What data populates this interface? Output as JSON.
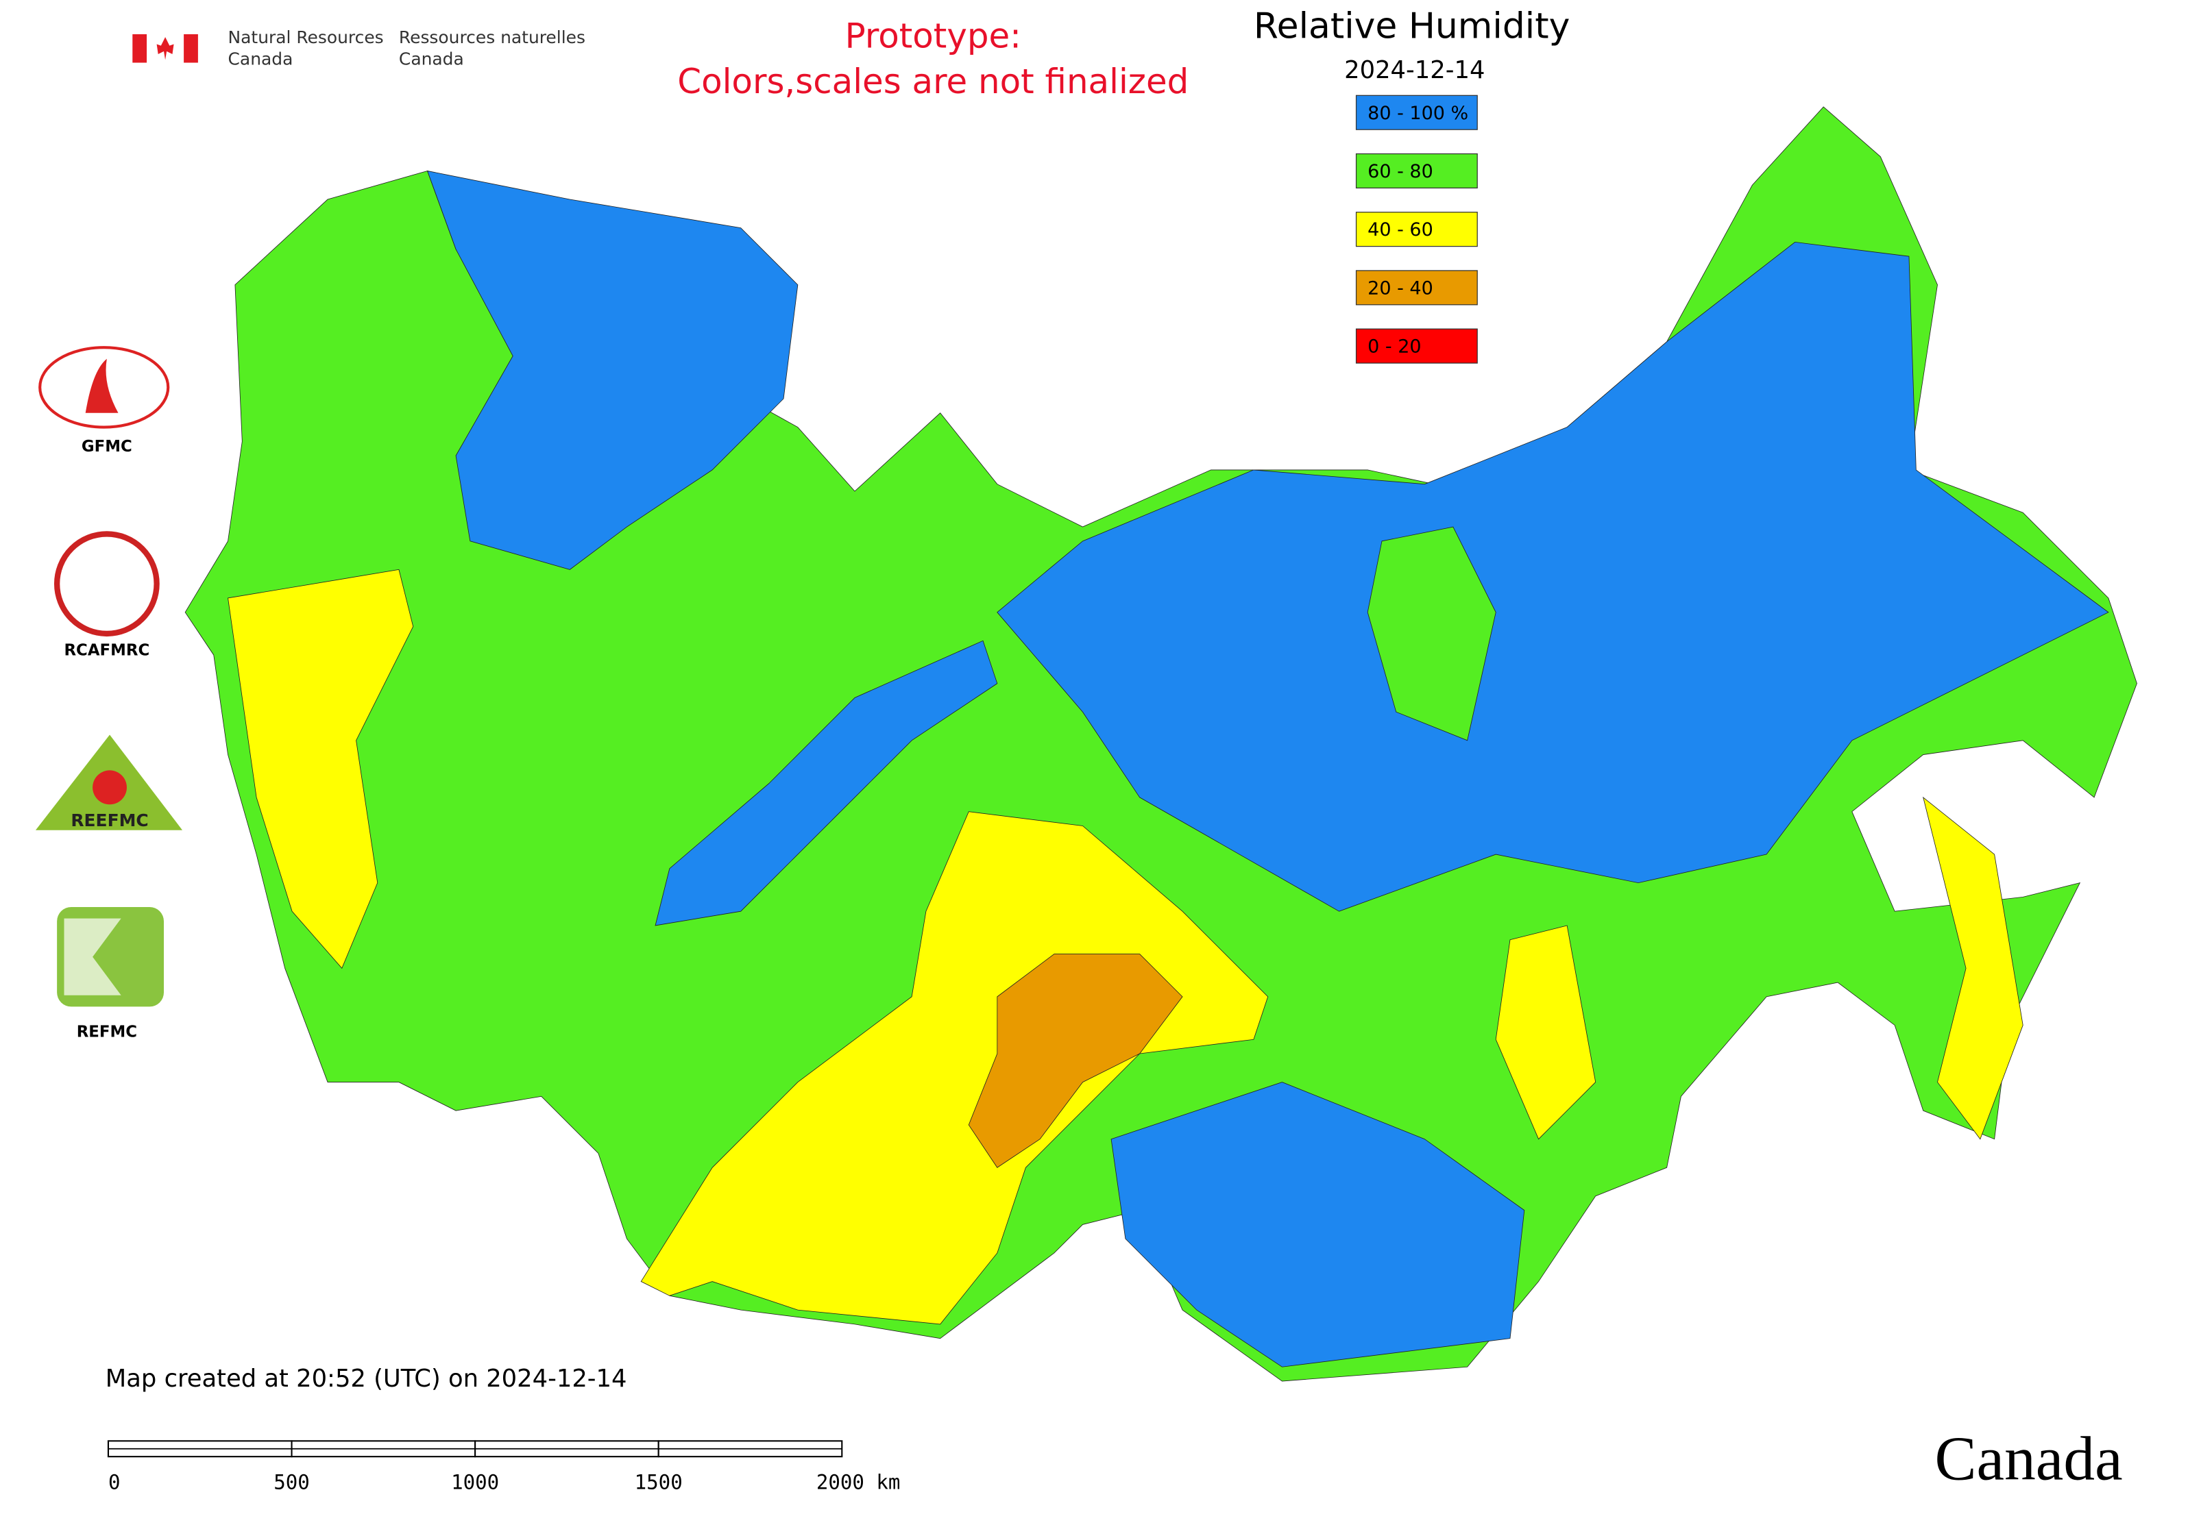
{
  "header": {
    "agency_en": [
      "Natural Resources",
      "Canada"
    ],
    "agency_fr": [
      "Ressources naturelles",
      "Canada"
    ]
  },
  "notice": [
    "Prototype:",
    "Colors,scales are not finalized"
  ],
  "title": "Relative Humidity",
  "date": "2024-12-14",
  "legend": [
    {
      "label": "80 - 100 %",
      "color": "#1e87f0"
    },
    {
      "label": "60 - 80",
      "color": "#55ee22"
    },
    {
      "label": "40 - 60",
      "color": "#ffff00"
    },
    {
      "label": "20 - 40",
      "color": "#e89a00"
    },
    {
      "label": "0 - 20",
      "color": "#ff0000"
    }
  ],
  "logos": [
    "GFMC",
    "RCAFMRC",
    "REEFMC",
    "REFMC"
  ],
  "footer": {
    "created": "Map created at 20:52 (UTC) on 2024-12-14",
    "scale_labels": [
      "0",
      "500",
      "1000",
      "1500",
      "2000 km"
    ],
    "wordmark": "Canada"
  }
}
